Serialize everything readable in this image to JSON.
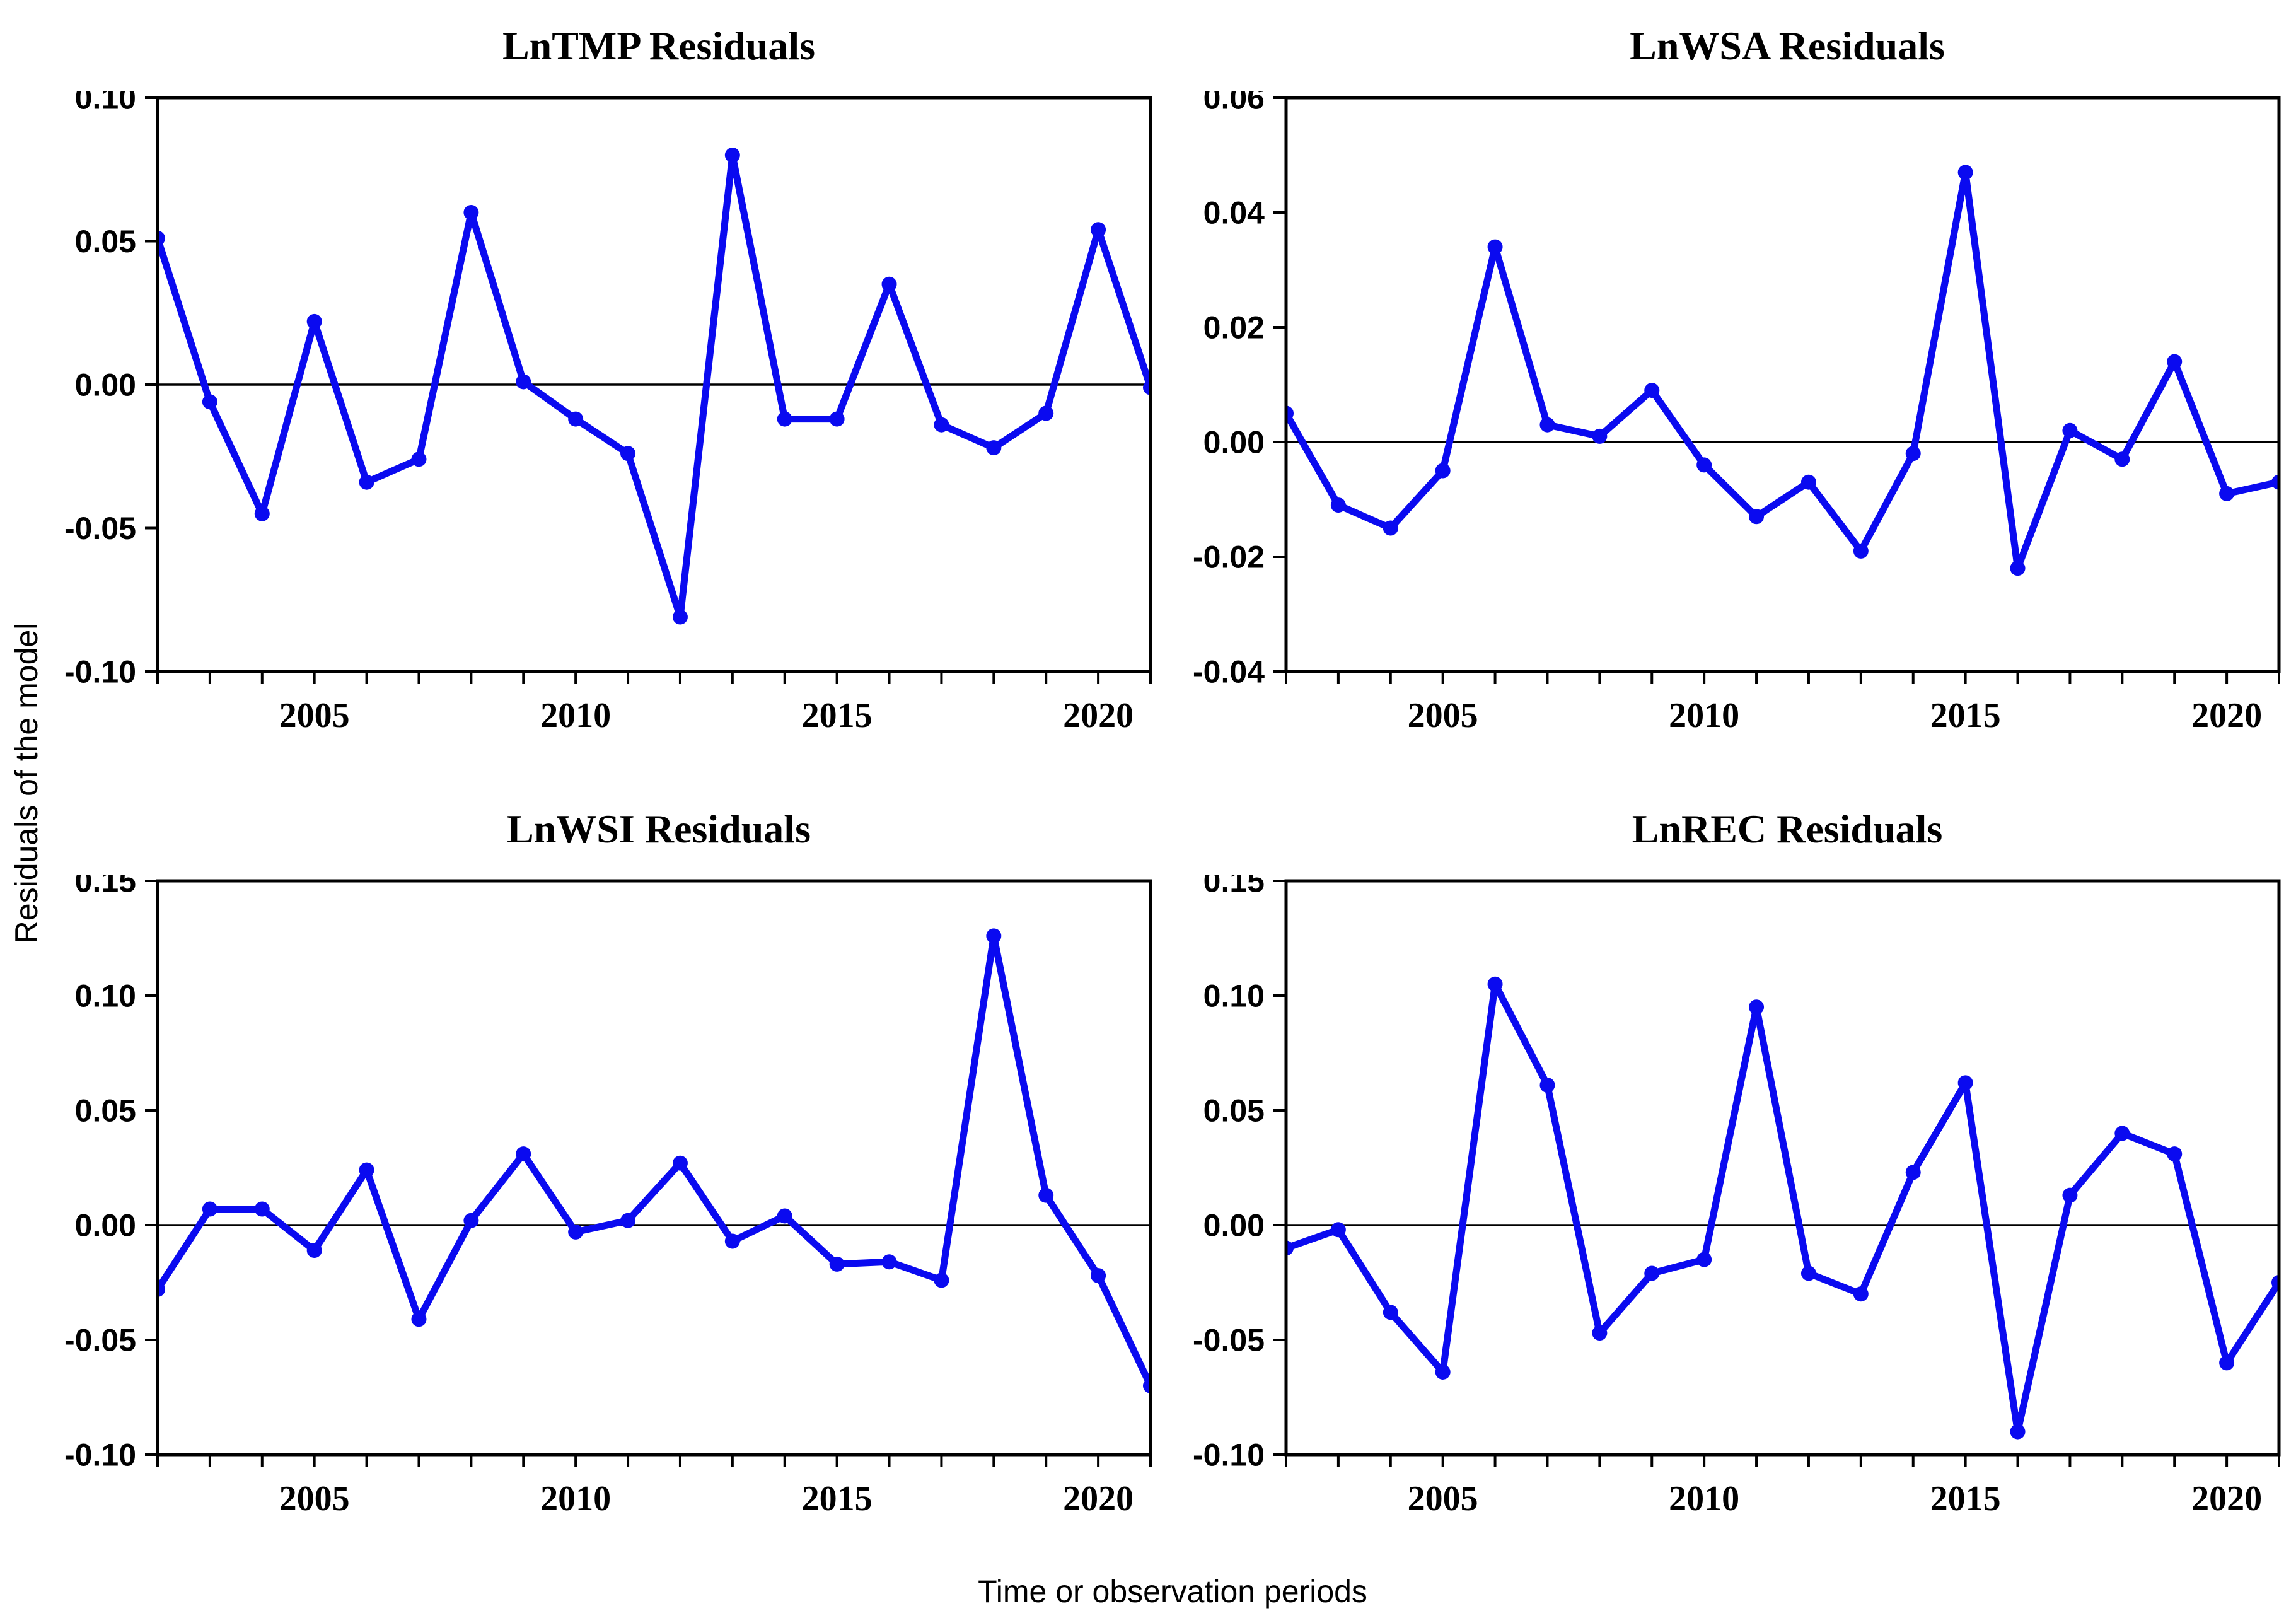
{
  "figure": {
    "ylabel": "Residuals of the model",
    "xlabel": "Time or observation periods",
    "line_color": "#0a0af0",
    "marker_color": "#0a0af0",
    "axis_color": "#000000",
    "background_color": "#ffffff"
  },
  "chart_data": [
    {
      "type": "line",
      "title": "LnTMP Residuals",
      "x": [
        2002,
        2003,
        2004,
        2005,
        2006,
        2007,
        2008,
        2009,
        2010,
        2011,
        2012,
        2013,
        2014,
        2015,
        2016,
        2017,
        2018,
        2019,
        2020,
        2021
      ],
      "values": [
        0.051,
        -0.006,
        -0.045,
        0.022,
        -0.034,
        -0.026,
        0.06,
        0.001,
        -0.012,
        -0.024,
        -0.081,
        0.08,
        -0.012,
        -0.012,
        0.035,
        -0.014,
        -0.022,
        -0.01,
        0.054,
        -0.001
      ],
      "ylim": [
        -0.1,
        0.1
      ],
      "xlim": [
        2002,
        2021
      ],
      "ytick_values": [
        0.1,
        0.05,
        0.0,
        -0.05,
        -0.1
      ],
      "ytick_labels": [
        "0.10",
        "0.05",
        "0.00",
        "-0.05",
        "-0.10"
      ],
      "xtick_values": [
        2005,
        2010,
        2015,
        2020
      ],
      "xtick_labels": [
        "2005",
        "2010",
        "2015",
        "2020"
      ],
      "zero_line": true,
      "grid": false,
      "legend": "none"
    },
    {
      "type": "line",
      "title": "LnWSA Residuals",
      "x": [
        2002,
        2003,
        2004,
        2005,
        2006,
        2007,
        2008,
        2009,
        2010,
        2011,
        2012,
        2013,
        2014,
        2015,
        2016,
        2017,
        2018,
        2019,
        2020,
        2021
      ],
      "values": [
        0.005,
        -0.011,
        -0.015,
        -0.005,
        0.034,
        0.003,
        0.001,
        0.009,
        -0.004,
        -0.013,
        -0.007,
        -0.019,
        -0.002,
        0.047,
        -0.022,
        0.002,
        -0.003,
        0.014,
        -0.009,
        -0.007
      ],
      "ylim": [
        -0.04,
        0.06
      ],
      "xlim": [
        2002,
        2021
      ],
      "ytick_values": [
        0.06,
        0.04,
        0.02,
        0.0,
        -0.02,
        -0.04
      ],
      "ytick_labels": [
        "0.06",
        "0.04",
        "0.02",
        "0.00",
        "-0.02",
        "-0.04"
      ],
      "xtick_values": [
        2005,
        2010,
        2015,
        2020
      ],
      "xtick_labels": [
        "2005",
        "2010",
        "2015",
        "2020"
      ],
      "zero_line": true,
      "grid": false,
      "legend": "none"
    },
    {
      "type": "line",
      "title": "LnWSI Residuals",
      "x": [
        2002,
        2003,
        2004,
        2005,
        2006,
        2007,
        2008,
        2009,
        2010,
        2011,
        2012,
        2013,
        2014,
        2015,
        2016,
        2017,
        2018,
        2019,
        2020,
        2021
      ],
      "values": [
        -0.028,
        0.007,
        0.007,
        -0.011,
        0.024,
        -0.041,
        0.002,
        0.031,
        -0.003,
        0.002,
        0.027,
        -0.007,
        0.004,
        -0.017,
        -0.016,
        -0.024,
        0.126,
        0.013,
        -0.022,
        -0.07
      ],
      "ylim": [
        -0.1,
        0.15
      ],
      "xlim": [
        2002,
        2021
      ],
      "ytick_values": [
        0.15,
        0.1,
        0.05,
        0.0,
        -0.05,
        -0.1
      ],
      "ytick_labels": [
        "0.15",
        "0.10",
        "0.05",
        "0.00",
        "-0.05",
        "-0.10"
      ],
      "xtick_values": [
        2005,
        2010,
        2015,
        2020
      ],
      "xtick_labels": [
        "2005",
        "2010",
        "2015",
        "2020"
      ],
      "zero_line": true,
      "grid": false,
      "legend": "none"
    },
    {
      "type": "line",
      "title": "LnREC Residuals",
      "x": [
        2002,
        2003,
        2004,
        2005,
        2006,
        2007,
        2008,
        2009,
        2010,
        2011,
        2012,
        2013,
        2014,
        2015,
        2016,
        2017,
        2018,
        2019,
        2020,
        2021
      ],
      "values": [
        -0.01,
        -0.002,
        -0.038,
        -0.064,
        0.105,
        0.061,
        -0.047,
        -0.021,
        -0.015,
        0.095,
        -0.021,
        -0.03,
        0.023,
        0.062,
        -0.09,
        0.013,
        0.04,
        0.031,
        -0.06,
        -0.025
      ],
      "ylim": [
        -0.1,
        0.15
      ],
      "xlim": [
        2002,
        2021
      ],
      "ytick_values": [
        0.15,
        0.1,
        0.05,
        0.0,
        -0.05,
        -0.1
      ],
      "ytick_labels": [
        "0.15",
        "0.10",
        "0.05",
        "0.00",
        "-0.05",
        "-0.10"
      ],
      "xtick_values": [
        2005,
        2010,
        2015,
        2020
      ],
      "xtick_labels": [
        "2005",
        "2010",
        "2015",
        "2020"
      ],
      "zero_line": true,
      "grid": false,
      "legend": "none"
    }
  ]
}
